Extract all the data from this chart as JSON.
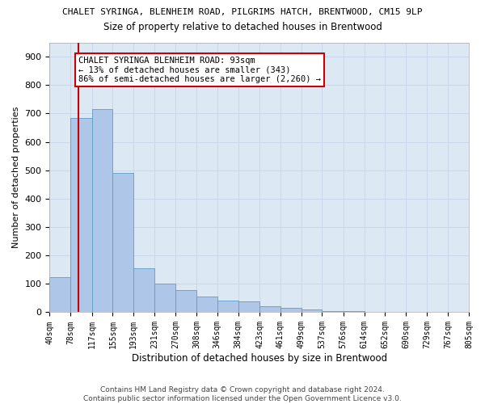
{
  "title_line1": "CHALET SYRINGA, BLENHEIM ROAD, PILGRIMS HATCH, BRENTWOOD, CM15 9LP",
  "title_line2": "Size of property relative to detached houses in Brentwood",
  "xlabel": "Distribution of detached houses by size in Brentwood",
  "ylabel": "Number of detached properties",
  "footer1": "Contains HM Land Registry data © Crown copyright and database right 2024.",
  "footer2": "Contains public sector information licensed under the Open Government Licence v3.0.",
  "bin_labels": [
    "40sqm",
    "78sqm",
    "117sqm",
    "155sqm",
    "193sqm",
    "231sqm",
    "270sqm",
    "308sqm",
    "346sqm",
    "384sqm",
    "423sqm",
    "461sqm",
    "499sqm",
    "537sqm",
    "576sqm",
    "614sqm",
    "652sqm",
    "690sqm",
    "729sqm",
    "767sqm",
    "805sqm"
  ],
  "bar_values": [
    125,
    685,
    715,
    490,
    155,
    100,
    78,
    55,
    40,
    38,
    22,
    15,
    10,
    4,
    3,
    2,
    1,
    1,
    0,
    0,
    8
  ],
  "bin_edges": [
    40,
    78,
    117,
    155,
    193,
    231,
    270,
    308,
    346,
    384,
    423,
    461,
    499,
    537,
    576,
    614,
    652,
    690,
    729,
    767,
    805
  ],
  "bar_color": "#aec6e8",
  "bar_edge_color": "#5a9fc8",
  "grid_color": "#c8d8ea",
  "bg_color": "#dce8f4",
  "property_size": 93,
  "red_line_color": "#cc0000",
  "annotation_text": "CHALET SYRINGA BLENHEIM ROAD: 93sqm\n← 13% of detached houses are smaller (343)\n86% of semi-detached houses are larger (2,260) →",
  "annotation_box_color": "#ffffff",
  "annotation_border_color": "#cc0000",
  "ylim": [
    0,
    950
  ],
  "yticks": [
    0,
    100,
    200,
    300,
    400,
    500,
    600,
    700,
    800,
    900
  ]
}
